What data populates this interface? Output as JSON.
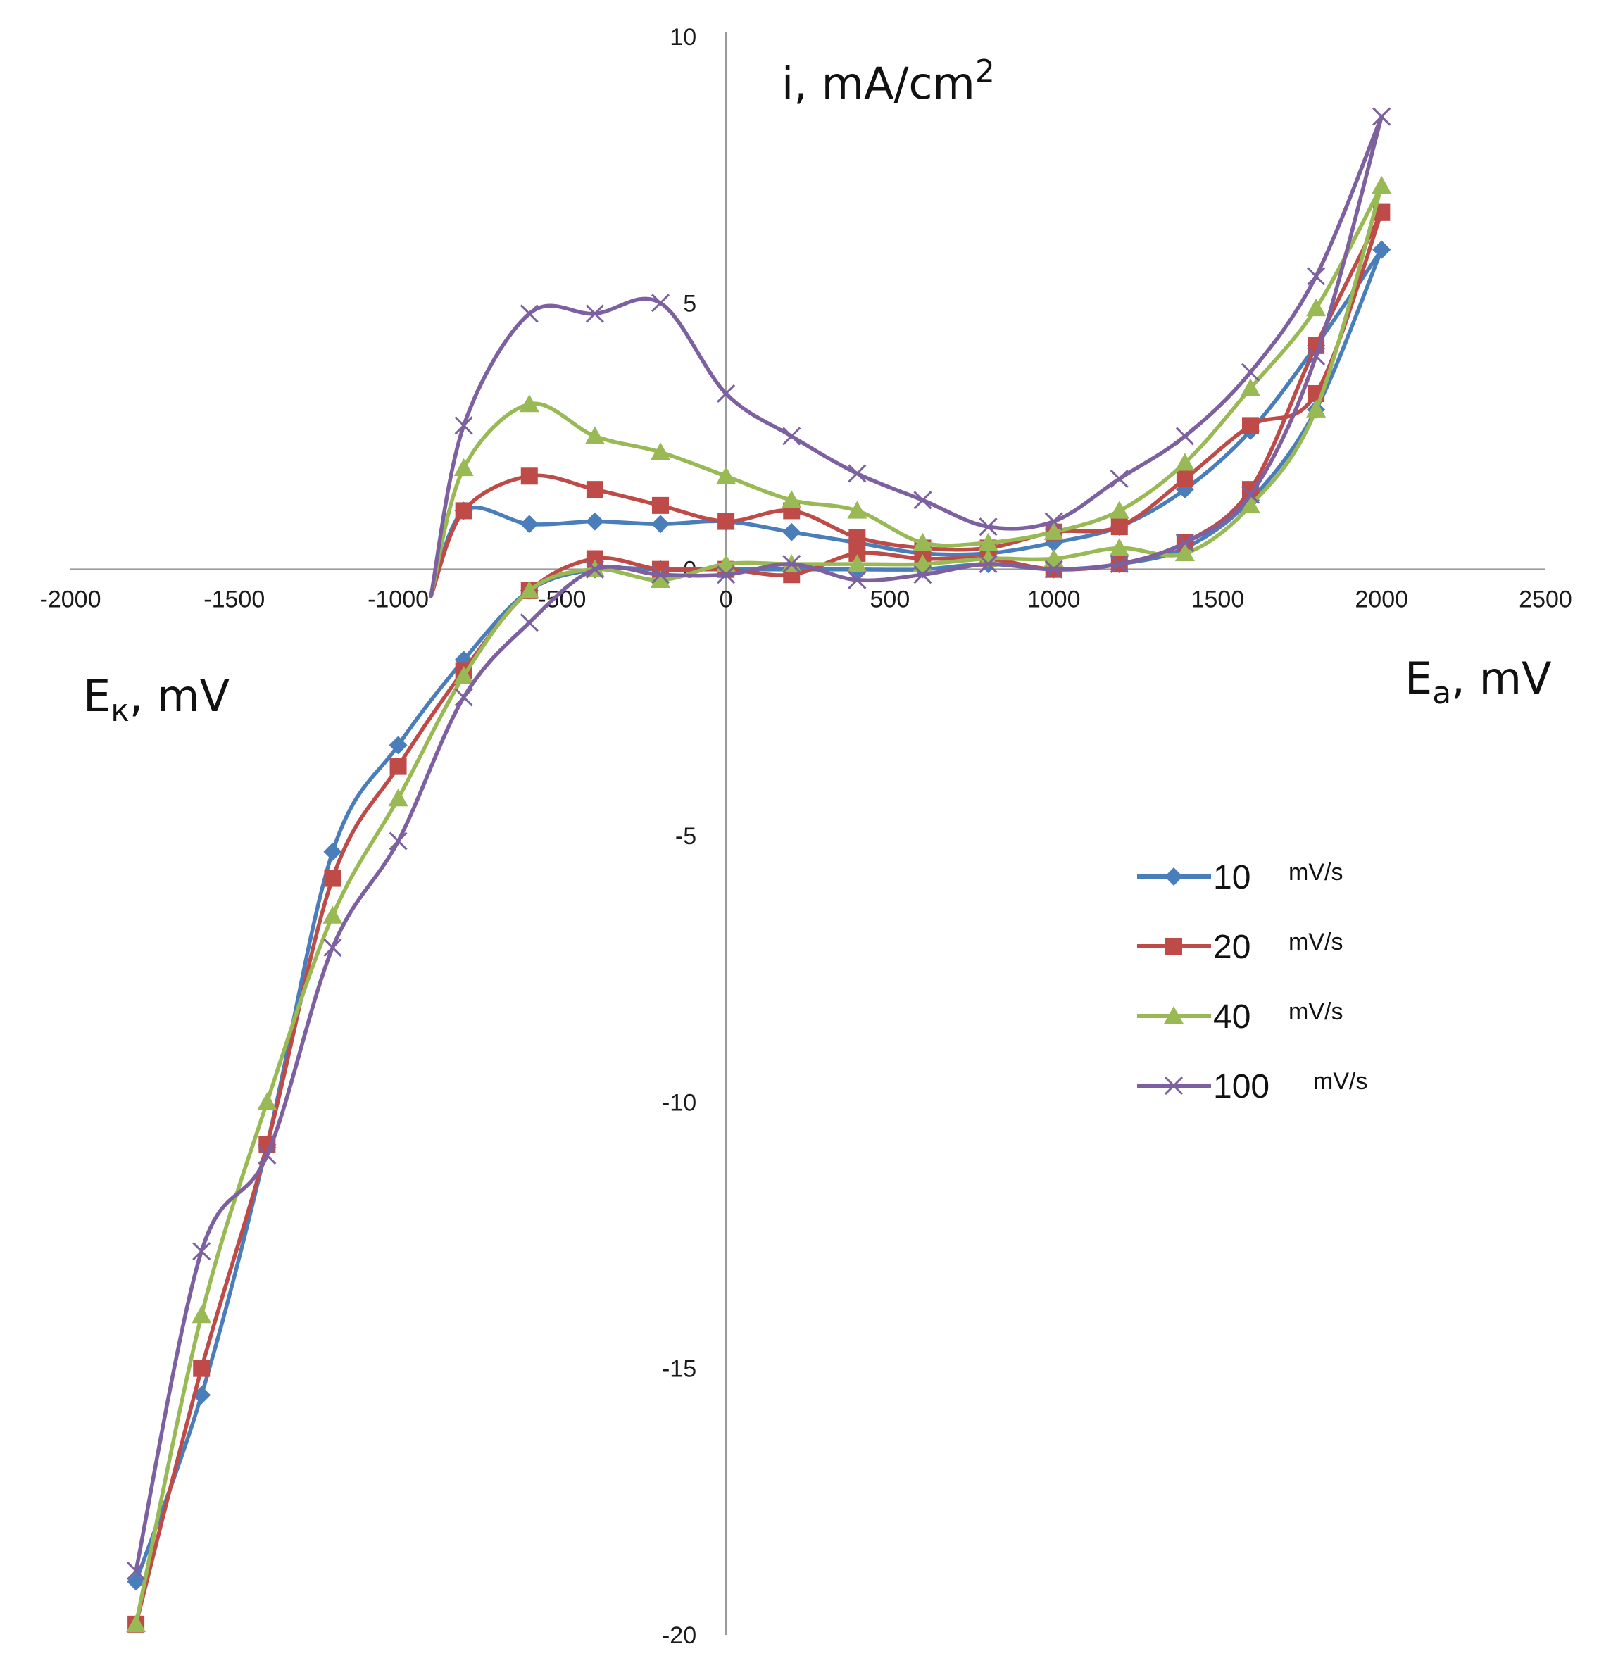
{
  "chart_data": {
    "type": "line",
    "xlim": [
      -2000,
      2500
    ],
    "ylim": [
      -20,
      10
    ],
    "x_ticks": [
      "-2000",
      "-1500",
      "-1000",
      "-500",
      "0",
      "500",
      "1000",
      "1500",
      "2000",
      "2500"
    ],
    "y_ticks": [
      "10",
      "5",
      "0",
      "-5",
      "-10",
      "-15",
      "-20"
    ],
    "y_tick_values": [
      10,
      5,
      0,
      -5,
      -10,
      -15,
      -20
    ],
    "x_tick_values": [
      -2000,
      -1500,
      -1000,
      -500,
      0,
      500,
      1000,
      1500,
      2000,
      2500
    ],
    "ylabel": {
      "main": "i, mA/cm",
      "sup": "2"
    },
    "xlabel_right": {
      "main": "E",
      "sub": "a",
      "rest": ", mV"
    },
    "xlabel_left": {
      "main": "E",
      "sub": "к",
      "rest": ", mV"
    },
    "series": [
      {
        "name": "10",
        "unit": "mV/s",
        "color": "#4a7ebb",
        "marker": "diamond",
        "upper_x": [
          -800,
          -600,
          -400,
          -200,
          0,
          200,
          400,
          600,
          800,
          1000,
          1200,
          1400,
          1600,
          1800,
          2000
        ],
        "upper_y": [
          1.1,
          0.85,
          0.9,
          0.85,
          0.9,
          0.7,
          0.5,
          0.3,
          0.3,
          0.5,
          0.8,
          1.5,
          2.6,
          4.2,
          6.0
        ],
        "lower_x": [
          -1800,
          -1600,
          -1400,
          -1200,
          -1000,
          -800,
          -600,
          -400,
          -200,
          0,
          200,
          400,
          600,
          800,
          1000,
          1200,
          1400,
          1600,
          1800,
          2000
        ],
        "lower_y": [
          -19.0,
          -15.5,
          -10.8,
          -5.3,
          -3.3,
          -1.7,
          -0.4,
          0.0,
          0.0,
          0.0,
          0.0,
          0.0,
          0.0,
          0.1,
          0.0,
          0.1,
          0.4,
          1.3,
          3.0,
          6.0
        ]
      },
      {
        "name": "20",
        "unit": "mV/s",
        "color": "#be4b48",
        "marker": "square",
        "upper_x": [
          -800,
          -600,
          -400,
          -200,
          0,
          200,
          400,
          600,
          800,
          1000,
          1200,
          1400,
          1600,
          1800,
          2000
        ],
        "upper_y": [
          1.1,
          1.75,
          1.5,
          1.2,
          0.9,
          1.1,
          0.6,
          0.4,
          0.4,
          0.7,
          0.8,
          1.7,
          2.7,
          3.3,
          6.7
        ],
        "lower_x": [
          -1800,
          -1600,
          -1400,
          -1200,
          -1000,
          -800,
          -600,
          -400,
          -200,
          0,
          200,
          400,
          600,
          800,
          1000,
          1200,
          1400,
          1600,
          1800,
          2000
        ],
        "lower_y": [
          -19.8,
          -15.0,
          -10.8,
          -5.8,
          -3.7,
          -1.9,
          -0.4,
          0.2,
          0.0,
          0.0,
          -0.1,
          0.3,
          0.2,
          0.2,
          0.0,
          0.1,
          0.5,
          1.5,
          4.2,
          6.7
        ]
      },
      {
        "name": "40",
        "unit": "mV/s",
        "color": "#98b954",
        "marker": "triangle",
        "upper_x": [
          -800,
          -600,
          -400,
          -200,
          0,
          200,
          400,
          600,
          800,
          1000,
          1200,
          1400,
          1600,
          1800,
          2000
        ],
        "upper_y": [
          1.9,
          3.1,
          2.5,
          2.2,
          1.75,
          1.3,
          1.1,
          0.5,
          0.5,
          0.7,
          1.1,
          2.0,
          3.4,
          4.9,
          7.2
        ],
        "lower_x": [
          -1800,
          -1600,
          -1400,
          -1200,
          -1000,
          -800,
          -600,
          -400,
          -200,
          0,
          200,
          400,
          600,
          800,
          1000,
          1200,
          1400,
          1600,
          1800,
          2000
        ],
        "lower_y": [
          -19.8,
          -14.0,
          -10.0,
          -6.5,
          -4.3,
          -2.0,
          -0.4,
          0.0,
          -0.2,
          0.1,
          0.1,
          0.1,
          0.1,
          0.2,
          0.2,
          0.4,
          0.3,
          1.2,
          3.0,
          7.2
        ]
      },
      {
        "name": "100",
        "unit": "mV/s",
        "color": "#7d60a0",
        "marker": "x",
        "upper_x": [
          -800,
          -600,
          -400,
          -200,
          0,
          200,
          400,
          600,
          800,
          1000,
          1200,
          1400,
          1600,
          1800,
          2000
        ],
        "upper_y": [
          2.7,
          4.8,
          4.8,
          5.0,
          3.3,
          2.5,
          1.8,
          1.3,
          0.8,
          0.9,
          1.7,
          2.5,
          3.7,
          5.5,
          8.5
        ],
        "lower_x": [
          -1800,
          -1600,
          -1400,
          -1200,
          -1000,
          -800,
          -600,
          -400,
          -200,
          0,
          200,
          400,
          600,
          800,
          1000,
          1200,
          1400,
          1600,
          1800,
          2000
        ],
        "lower_y": [
          -18.8,
          -12.8,
          -11.0,
          -7.1,
          -5.1,
          -2.4,
          -1.0,
          0.0,
          -0.1,
          -0.1,
          0.1,
          -0.2,
          -0.1,
          0.1,
          0.0,
          0.1,
          0.5,
          1.4,
          4.0,
          8.5
        ]
      }
    ]
  }
}
